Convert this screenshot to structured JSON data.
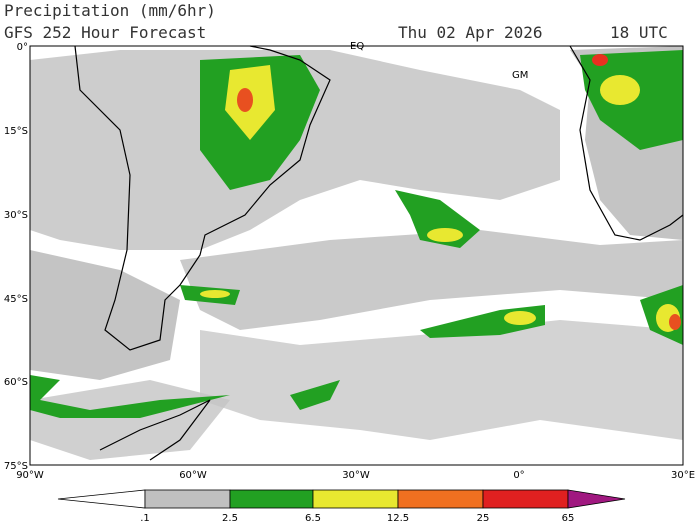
{
  "header": {
    "title": "Precipitation (mm/6hr)",
    "subtitle": "GFS 252 Hour Forecast",
    "date": "Thu 02 Apr 2026",
    "time": "18 UTC"
  },
  "map": {
    "lat_labels": [
      "0°",
      "15°S",
      "30°S",
      "45°S",
      "60°S",
      "75°S"
    ],
    "lon_labels": [
      "90°W",
      "60°W",
      "30°W",
      "0°",
      "30°E"
    ],
    "markers": [
      "EQ",
      "GM"
    ]
  },
  "colorbar": {
    "labels": [
      ".1",
      "2.5",
      "6.5",
      "12.5",
      "25",
      "65"
    ]
  }
}
